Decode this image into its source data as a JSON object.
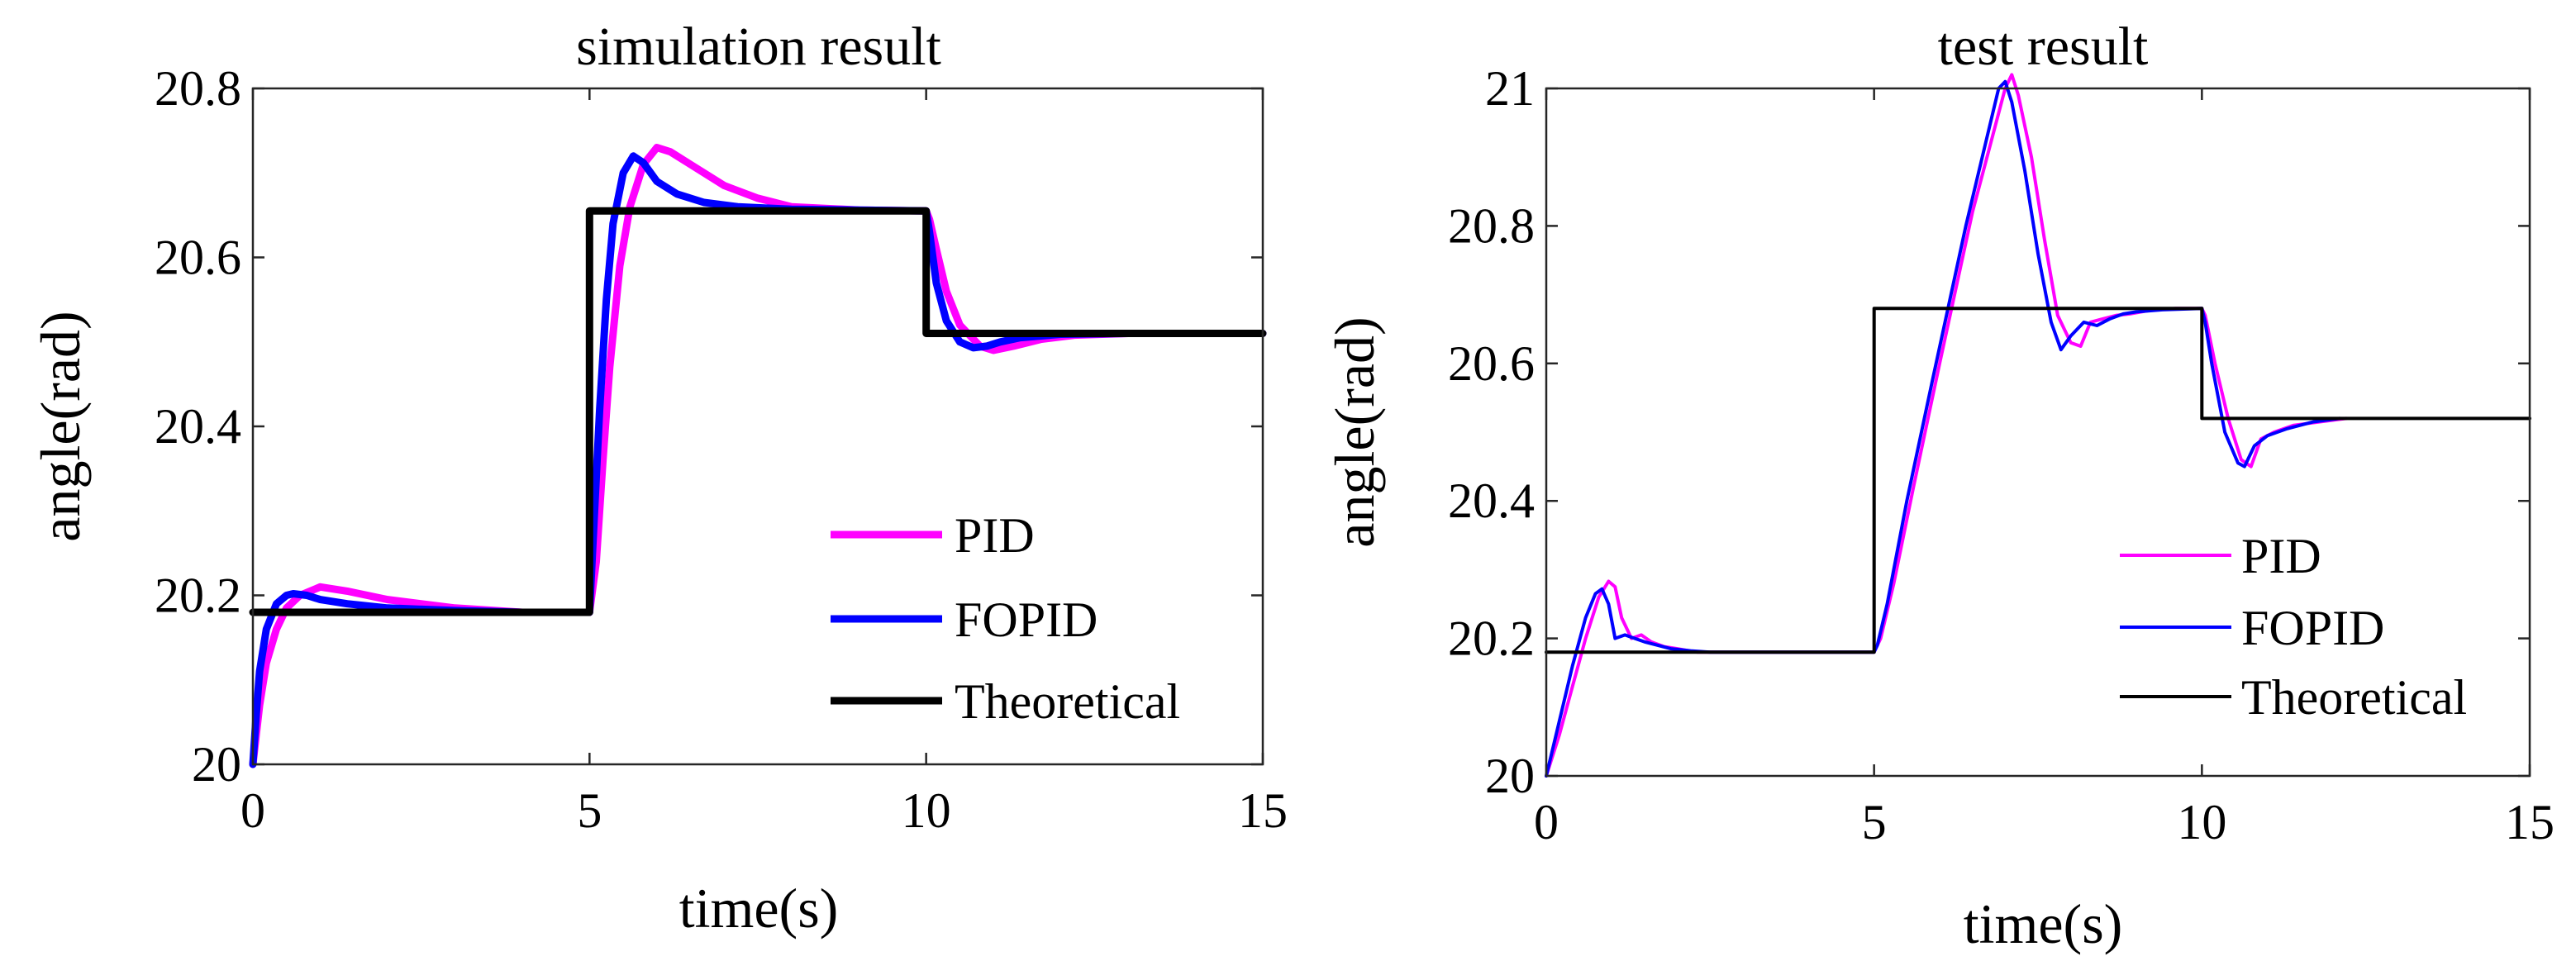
{
  "chart_data": [
    {
      "type": "line",
      "title": "simulation result",
      "xlabel": "time(s)",
      "ylabel": "angle(rad)",
      "xlim": [
        0,
        15
      ],
      "ylim": [
        20,
        20.8
      ],
      "xticks": [
        0,
        5,
        10,
        15
      ],
      "yticks": [
        20,
        20.2,
        20.4,
        20.6,
        20.8
      ],
      "xtick_labels": [
        "0",
        "5",
        "10",
        "15"
      ],
      "ytick_labels": [
        "20",
        "20.2",
        "20.4",
        "20.6",
        "20.8"
      ],
      "grid": false,
      "legend_position": "bottom-right",
      "legend": [
        "PID",
        "FOPID",
        "Theoretical"
      ],
      "series": [
        {
          "name": "PID",
          "color": "#ff00ff",
          "width": 9,
          "x": [
            0,
            0.1,
            0.2,
            0.35,
            0.5,
            0.7,
            1.0,
            1.4,
            2.0,
            3.0,
            4.0,
            5.0,
            5.1,
            5.2,
            5.3,
            5.45,
            5.6,
            5.8,
            6.0,
            6.2,
            6.5,
            7.0,
            7.5,
            8.0,
            9.0,
            10.0,
            10.05,
            10.15,
            10.3,
            10.5,
            10.8,
            11.0,
            11.3,
            11.7,
            12.2,
            13.0,
            14.0,
            15.0
          ],
          "y": [
            20,
            20.07,
            20.12,
            20.16,
            20.185,
            20.2,
            20.21,
            20.205,
            20.195,
            20.185,
            20.18,
            20.18,
            20.24,
            20.36,
            20.47,
            20.59,
            20.66,
            20.71,
            20.73,
            20.725,
            20.71,
            20.685,
            20.67,
            20.66,
            20.656,
            20.655,
            20.645,
            20.61,
            20.56,
            20.52,
            20.495,
            20.49,
            20.495,
            20.503,
            20.508,
            20.51,
            20.51,
            20.51
          ]
        },
        {
          "name": "FOPID",
          "color": "#0000ff",
          "width": 9,
          "x": [
            0,
            0.05,
            0.1,
            0.2,
            0.35,
            0.5,
            0.6,
            0.8,
            1.0,
            1.4,
            2.0,
            3.0,
            4.0,
            5.0,
            5.05,
            5.15,
            5.25,
            5.35,
            5.5,
            5.65,
            5.8,
            6.0,
            6.3,
            6.7,
            7.2,
            8.0,
            9.0,
            10.0,
            10.05,
            10.15,
            10.3,
            10.5,
            10.7,
            10.9,
            11.1,
            11.4,
            12.0,
            13.0,
            15.0
          ],
          "y": [
            20,
            20.06,
            20.11,
            20.16,
            20.19,
            20.2,
            20.202,
            20.2,
            20.195,
            20.19,
            20.185,
            20.182,
            20.18,
            20.18,
            20.26,
            20.42,
            20.55,
            20.64,
            20.7,
            20.72,
            20.712,
            20.69,
            20.675,
            20.665,
            20.66,
            20.657,
            20.656,
            20.655,
            20.63,
            20.57,
            20.525,
            20.5,
            20.493,
            20.495,
            20.5,
            20.505,
            20.509,
            20.51,
            20.51
          ]
        },
        {
          "name": "Theoretical",
          "color": "#000000",
          "width": 9,
          "x": [
            0,
            5,
            5,
            10,
            10,
            15
          ],
          "y": [
            20.18,
            20.18,
            20.655,
            20.655,
            20.51,
            20.51
          ]
        }
      ]
    },
    {
      "type": "line",
      "title": "test result",
      "xlabel": "time(s)",
      "ylabel": "angle(rad)",
      "xlim": [
        0,
        15
      ],
      "ylim": [
        20,
        21
      ],
      "xticks": [
        0,
        5,
        10,
        15
      ],
      "yticks": [
        20,
        20.2,
        20.4,
        20.6,
        20.8,
        21
      ],
      "xtick_labels": [
        "0",
        "5",
        "10",
        "15"
      ],
      "ytick_labels": [
        "20",
        "20.2",
        "20.4",
        "20.6",
        "20.8",
        "21"
      ],
      "grid": false,
      "legend_position": "bottom-right",
      "legend": [
        "PID",
        "FOPID",
        "Theoretical"
      ],
      "series": [
        {
          "name": "PID",
          "color": "#ff00ff",
          "width": 4,
          "x": [
            0,
            0.2,
            0.4,
            0.6,
            0.8,
            0.95,
            1.05,
            1.15,
            1.3,
            1.45,
            1.6,
            1.8,
            2.0,
            2.3,
            2.6,
            3.0,
            4.0,
            5.0,
            5.1,
            5.3,
            5.6,
            6.0,
            6.5,
            7.0,
            7.1,
            7.2,
            7.4,
            7.6,
            7.8,
            8.0,
            8.15,
            8.3,
            8.5,
            8.7,
            8.9,
            9.2,
            9.6,
            10.0,
            10.05,
            10.2,
            10.4,
            10.6,
            10.75,
            10.9,
            11.1,
            11.4,
            11.8,
            12.2
          ],
          "y": [
            20,
            20.06,
            20.13,
            20.2,
            20.26,
            20.283,
            20.275,
            20.23,
            20.2,
            20.205,
            20.195,
            20.188,
            20.185,
            20.18,
            20.18,
            20.18,
            20.18,
            20.18,
            20.2,
            20.28,
            20.42,
            20.6,
            20.82,
            21.0,
            21.02,
            20.99,
            20.9,
            20.78,
            20.67,
            20.63,
            20.625,
            20.66,
            20.665,
            20.67,
            20.672,
            20.677,
            20.68,
            20.68,
            20.67,
            20.6,
            20.52,
            20.46,
            20.45,
            20.49,
            20.5,
            20.51,
            20.515,
            20.52
          ]
        },
        {
          "name": "FOPID",
          "color": "#0000ff",
          "width": 4,
          "x": [
            0,
            0.2,
            0.4,
            0.6,
            0.75,
            0.85,
            0.95,
            1.05,
            1.2,
            1.35,
            1.5,
            1.7,
            1.9,
            2.2,
            2.5,
            3.0,
            4.0,
            5.0,
            5.05,
            5.2,
            5.5,
            5.9,
            6.4,
            6.9,
            7.0,
            7.1,
            7.3,
            7.5,
            7.7,
            7.85,
            8.0,
            8.2,
            8.4,
            8.6,
            8.8,
            9.0,
            9.4,
            10.0,
            10.05,
            10.15,
            10.35,
            10.55,
            10.65,
            10.8,
            11.0,
            11.3,
            11.7,
            12.1
          ],
          "y": [
            20,
            20.08,
            20.16,
            20.23,
            20.265,
            20.272,
            20.25,
            20.2,
            20.205,
            20.2,
            20.195,
            20.19,
            20.185,
            20.182,
            20.18,
            20.18,
            20.18,
            20.18,
            20.19,
            20.25,
            20.4,
            20.58,
            20.8,
            21.0,
            21.01,
            20.98,
            20.88,
            20.76,
            20.66,
            20.62,
            20.64,
            20.66,
            20.655,
            20.665,
            20.672,
            20.675,
            20.678,
            20.68,
            20.66,
            20.6,
            20.5,
            20.455,
            20.45,
            20.48,
            20.495,
            20.505,
            20.515,
            20.52
          ]
        },
        {
          "name": "Theoretical",
          "color": "#000000",
          "width": 4,
          "x": [
            0,
            5,
            5,
            10,
            10,
            15
          ],
          "y": [
            20.18,
            20.18,
            20.68,
            20.68,
            20.52,
            20.52
          ]
        }
      ]
    }
  ]
}
